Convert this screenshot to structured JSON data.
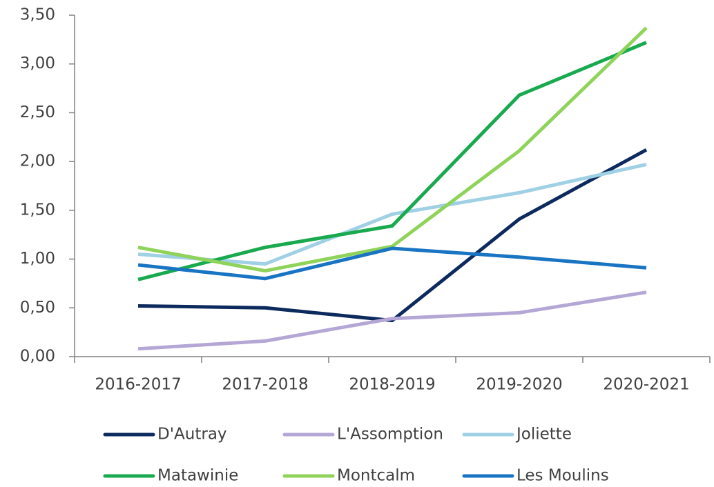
{
  "chart_data": {
    "type": "line",
    "categories": [
      "2016-2017",
      "2017-2018",
      "2018-2019",
      "2019-2020",
      "2020-2021"
    ],
    "series": [
      {
        "name": "D'Autray",
        "color": "#0d2a5e",
        "values": [
          0.52,
          0.5,
          0.37,
          1.41,
          2.12
        ]
      },
      {
        "name": "L'Assomption",
        "color": "#b4a7d6",
        "values": [
          0.08,
          0.16,
          0.39,
          0.45,
          0.66
        ]
      },
      {
        "name": "Joliette",
        "color": "#9fd0e4",
        "values": [
          1.05,
          0.95,
          1.46,
          1.68,
          1.97
        ]
      },
      {
        "name": "Matawinie",
        "color": "#19a94e",
        "values": [
          0.79,
          1.12,
          1.34,
          2.68,
          3.22
        ]
      },
      {
        "name": "Montcalm",
        "color": "#8fd35a",
        "values": [
          1.12,
          0.88,
          1.13,
          2.11,
          3.37
        ]
      },
      {
        "name": "Les Moulins",
        "color": "#1a74c4",
        "values": [
          0.94,
          0.8,
          1.11,
          1.02,
          0.91
        ]
      }
    ],
    "ylim": [
      0,
      3.5
    ],
    "yticks": [
      {
        "value": 0,
        "label": "0,00"
      },
      {
        "value": 0.5,
        "label": "0,50"
      },
      {
        "value": 1,
        "label": "1,00"
      },
      {
        "value": 1.5,
        "label": "1,50"
      },
      {
        "value": 2,
        "label": "2,00"
      },
      {
        "value": 2.5,
        "label": "2,50"
      },
      {
        "value": 3,
        "label": "3,00"
      },
      {
        "value": 3.5,
        "label": "3,50"
      }
    ],
    "grid": false,
    "legend": "bottom"
  }
}
